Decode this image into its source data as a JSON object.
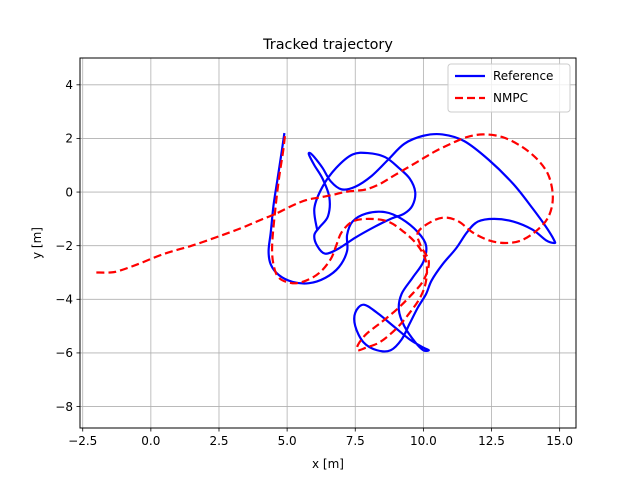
{
  "chart_data": {
    "type": "line",
    "title": "Tracked trajectory",
    "xlabel": "x [m]",
    "ylabel": "y [m]",
    "xlim": [
      -2.6,
      15.6
    ],
    "ylim": [
      -8.8,
      5.0
    ],
    "xticks": [
      -2.5,
      0.0,
      2.5,
      5.0,
      7.5,
      10.0,
      12.5,
      15.0
    ],
    "xtick_labels": [
      "−2.5",
      "0.0",
      "2.5",
      "5.0",
      "7.5",
      "10.0",
      "12.5",
      "15.0"
    ],
    "yticks": [
      4,
      2,
      0,
      -2,
      -4,
      -6,
      -8
    ],
    "ytick_labels": [
      "4",
      "2",
      "0",
      "−2",
      "−4",
      "−6",
      "−8"
    ],
    "grid": true,
    "legend_position": "top-right",
    "colors": {
      "reference": "#0000ff",
      "nmpc": "#ff0000",
      "grid": "#b0b0b0"
    },
    "series": [
      {
        "name": "Reference",
        "style": "solid",
        "x": [
          4.9,
          4.8,
          4.65,
          4.5,
          4.4,
          4.32,
          4.4,
          4.7,
          5.2,
          5.8,
          6.4,
          6.9,
          7.2,
          7.2,
          7.4,
          7.9,
          8.6,
          9.2,
          9.8,
          10.1,
          10.0,
          9.6,
          9.2,
          9.1,
          9.3,
          9.7,
          10.0,
          10.2,
          10.0,
          9.5,
          8.9,
          8.3,
          7.8,
          7.5,
          7.5,
          7.8,
          8.3,
          8.8,
          9.2,
          9.5,
          9.8,
          10.1,
          10.3,
          10.7,
          11.2,
          11.6,
          12.0,
          12.6,
          13.3,
          14.0,
          14.5,
          14.8,
          14.8,
          14.5,
          14.0,
          13.3,
          12.4,
          11.5,
          10.7,
          10.0,
          9.3,
          8.7,
          8.1,
          7.5,
          7.0,
          6.6,
          6.3,
          6.0,
          5.85,
          5.8,
          6.0,
          6.3,
          6.55,
          6.5,
          6.2,
          6.0,
          6.1,
          6.4,
          6.9,
          7.5,
          8.2,
          8.8,
          9.3,
          9.6,
          9.7,
          9.5,
          9.1,
          8.6,
          8.0,
          7.4,
          6.8,
          6.3,
          6.0,
          6.1
        ],
        "y": [
          2.2,
          1.5,
          0.5,
          -0.5,
          -1.5,
          -2.2,
          -2.7,
          -3.1,
          -3.35,
          -3.4,
          -3.2,
          -2.8,
          -2.2,
          -1.6,
          -1.1,
          -0.8,
          -0.75,
          -1.0,
          -1.5,
          -2.0,
          -2.6,
          -3.2,
          -3.8,
          -4.4,
          -5.0,
          -5.6,
          -5.9,
          -5.9,
          -5.8,
          -5.5,
          -5.0,
          -4.5,
          -4.2,
          -4.5,
          -5.0,
          -5.6,
          -5.9,
          -5.9,
          -5.5,
          -4.9,
          -4.3,
          -3.8,
          -3.3,
          -2.7,
          -2.1,
          -1.5,
          -1.1,
          -1.0,
          -1.1,
          -1.4,
          -1.8,
          -1.9,
          -1.8,
          -1.3,
          -0.6,
          0.3,
          1.2,
          1.9,
          2.15,
          2.1,
          1.8,
          1.2,
          0.6,
          0.2,
          0.1,
          0.4,
          0.9,
          1.3,
          1.45,
          1.4,
          1.0,
          0.5,
          -0.2,
          -0.9,
          -1.3,
          -1.6,
          -2.0,
          -2.3,
          -2.1,
          -1.7,
          -1.3,
          -1.0,
          -0.8,
          -0.5,
          0.0,
          0.5,
          0.9,
          1.3,
          1.45,
          1.4,
          0.9,
          0.2,
          -0.6,
          -1.4
        ]
      },
      {
        "name": "NMPC",
        "style": "dashed",
        "x": [
          -2.0,
          -1.5,
          -1.2,
          -0.5,
          0.5,
          1.5,
          2.5,
          3.3,
          4.0,
          4.6,
          5.2,
          5.7,
          6.2,
          6.7,
          7.1,
          7.5,
          7.9,
          8.4,
          8.9,
          9.4,
          9.9,
          10.4,
          11.0,
          11.6,
          12.2,
          12.9,
          13.6,
          14.2,
          14.6,
          14.75,
          14.6,
          14.2,
          13.6,
          13.0,
          12.4,
          11.8,
          11.3,
          10.8,
          10.3,
          9.8,
          9.9,
          10.2,
          10.0,
          9.5,
          9.0,
          8.4,
          7.9,
          7.6,
          7.6,
          7.9,
          8.4,
          9.0,
          9.5,
          9.9,
          10.1,
          10.1,
          9.8,
          9.3,
          8.7,
          8.0,
          7.4,
          7.0,
          6.8,
          6.6,
          6.2,
          5.7,
          5.2,
          4.7,
          4.5,
          4.45,
          4.55,
          4.7,
          4.85,
          4.92
        ],
        "y": [
          -3.0,
          -3.0,
          -2.95,
          -2.7,
          -2.3,
          -2.0,
          -1.65,
          -1.35,
          -1.05,
          -0.8,
          -0.5,
          -0.3,
          -0.2,
          -0.1,
          0.0,
          0.05,
          0.1,
          0.3,
          0.6,
          0.9,
          1.2,
          1.5,
          1.8,
          2.05,
          2.15,
          2.05,
          1.7,
          1.2,
          0.6,
          -0.2,
          -0.9,
          -1.4,
          -1.8,
          -1.9,
          -1.8,
          -1.5,
          -1.1,
          -0.95,
          -1.1,
          -1.5,
          -2.0,
          -2.6,
          -3.3,
          -3.9,
          -4.4,
          -4.9,
          -5.3,
          -5.7,
          -5.9,
          -5.8,
          -5.6,
          -5.1,
          -4.5,
          -3.9,
          -3.3,
          -2.6,
          -2.0,
          -1.5,
          -1.1,
          -1.0,
          -1.1,
          -1.5,
          -2.0,
          -2.5,
          -3.0,
          -3.3,
          -3.4,
          -3.2,
          -2.7,
          -2.0,
          -0.8,
          0.5,
          1.5,
          2.1
        ]
      }
    ]
  }
}
